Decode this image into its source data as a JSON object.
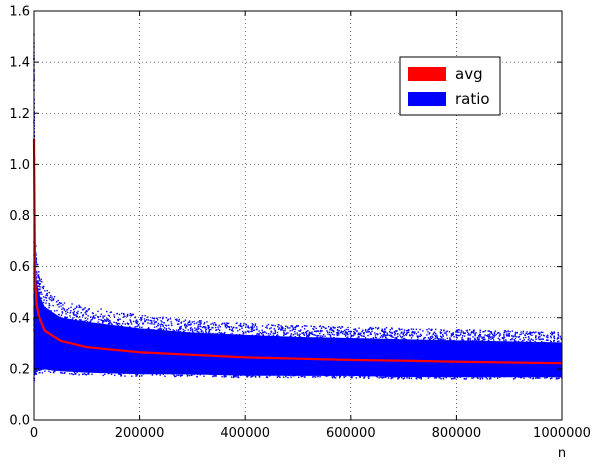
{
  "chart_data": {
    "type": "scatter",
    "title": "",
    "xlabel": "n",
    "ylabel": "",
    "xlim": [
      0,
      1000000
    ],
    "ylim": [
      0.0,
      1.6
    ],
    "grid": true,
    "legend_position": "top-right",
    "x_ticks": [
      0,
      200000,
      400000,
      600000,
      800000,
      1000000
    ],
    "x_tick_labels": [
      "0",
      "200000",
      "400000",
      "600000",
      "800000",
      "1000000"
    ],
    "y_ticks": [
      0.0,
      0.2,
      0.4,
      0.6,
      0.8,
      1.0,
      1.2,
      1.4,
      1.6
    ],
    "y_tick_labels": [
      "0.0",
      "0.2",
      "0.4",
      "0.6",
      "0.8",
      "1.0",
      "1.2",
      "1.4",
      "1.6"
    ],
    "series": [
      {
        "name": "avg",
        "type": "line",
        "color": "#ff0000",
        "x": [
          0,
          2000,
          5000,
          10000,
          20000,
          50000,
          100000,
          200000,
          300000,
          400000,
          500000,
          600000,
          700000,
          800000,
          900000,
          1000000
        ],
        "y": [
          1.1,
          0.55,
          0.45,
          0.4,
          0.35,
          0.31,
          0.285,
          0.265,
          0.255,
          0.245,
          0.24,
          0.235,
          0.232,
          0.228,
          0.225,
          0.222
        ]
      },
      {
        "name": "ratio",
        "type": "scatter-band",
        "color": "#0000ff",
        "x": [
          0,
          2000,
          5000,
          10000,
          20000,
          50000,
          100000,
          200000,
          300000,
          400000,
          500000,
          600000,
          700000,
          800000,
          900000,
          1000000
        ],
        "upper": [
          1.5,
          0.7,
          0.62,
          0.56,
          0.5,
          0.45,
          0.43,
          0.4,
          0.38,
          0.37,
          0.36,
          0.355,
          0.35,
          0.345,
          0.34,
          0.335
        ],
        "lower": [
          0.14,
          0.17,
          0.18,
          0.18,
          0.185,
          0.18,
          0.175,
          0.17,
          0.17,
          0.165,
          0.165,
          0.165,
          0.16,
          0.16,
          0.16,
          0.16
        ]
      }
    ]
  }
}
